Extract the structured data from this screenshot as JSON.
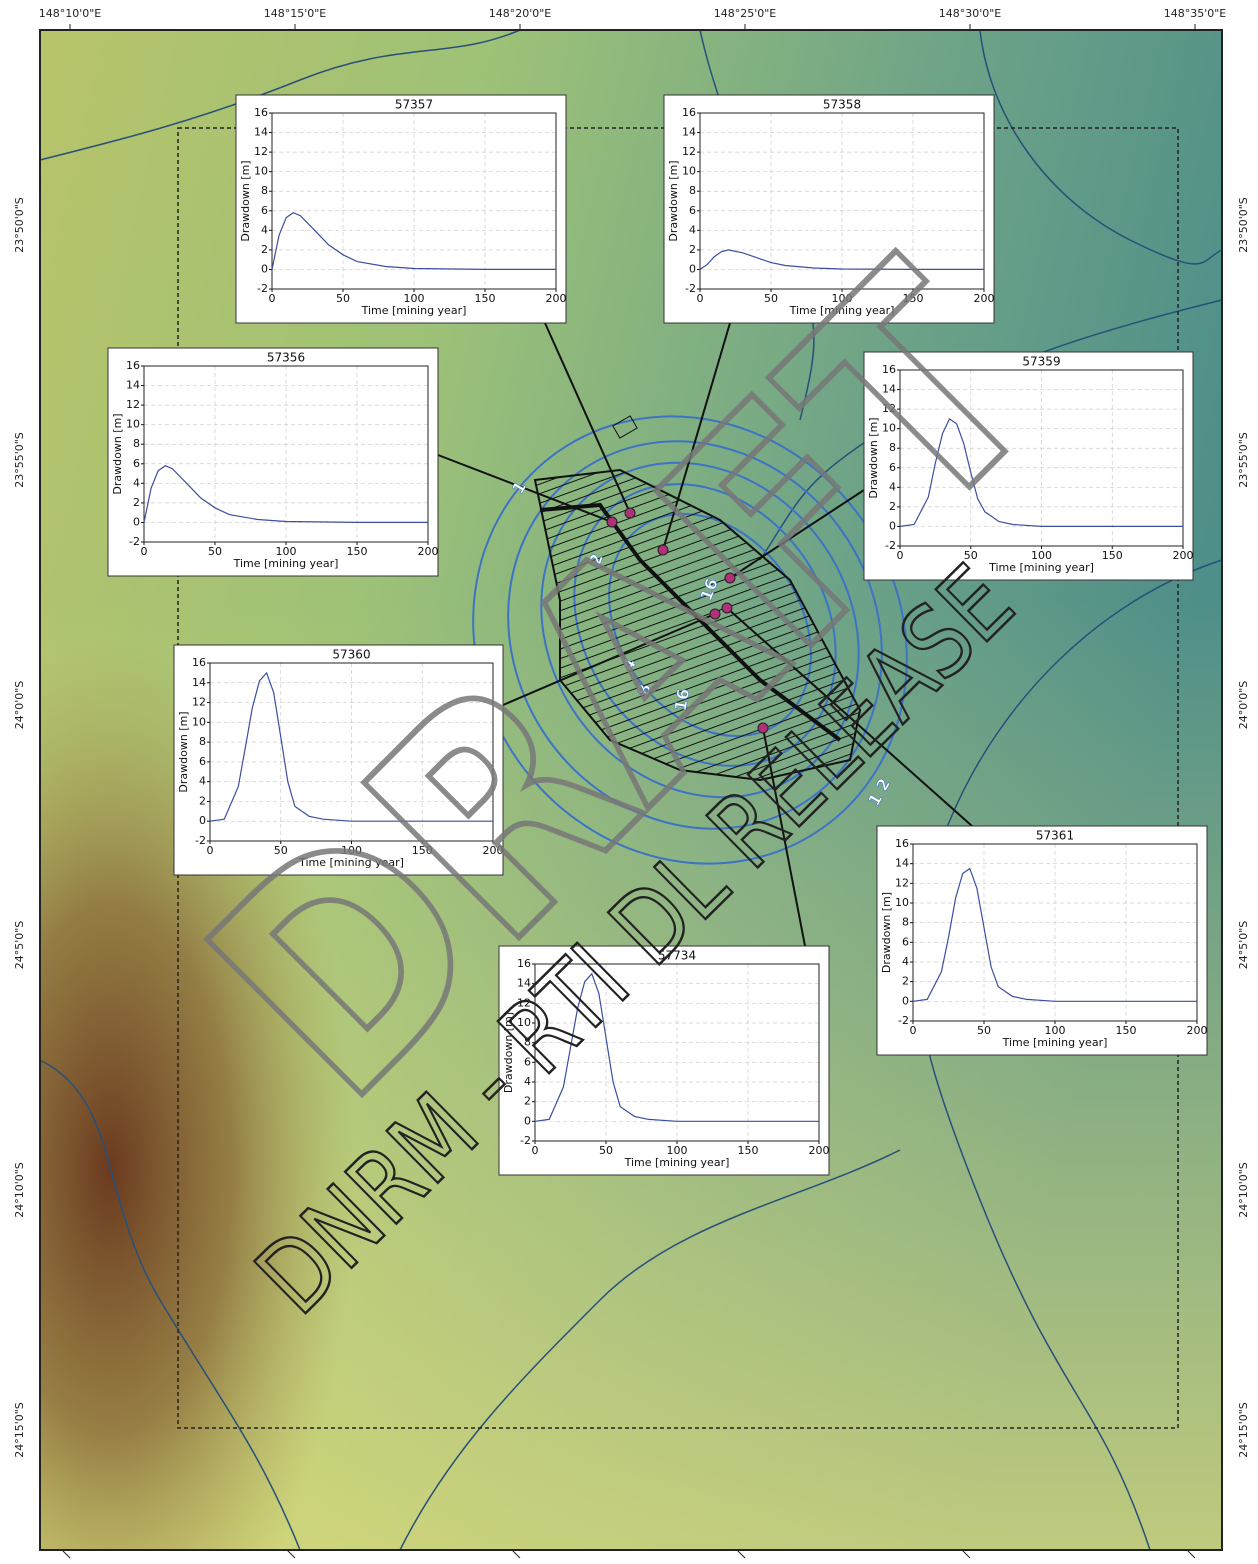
{
  "map": {
    "lon_labels": [
      "148°10'0\"E",
      "148°15'0\"E",
      "148°20'0\"E",
      "148°25'0\"E",
      "148°30'0\"E",
      "148°35'0\"E"
    ],
    "lat_labels": [
      "23°50'0\"S",
      "23°55'0\"S",
      "24°0'0\"S",
      "24°5'0\"S",
      "24°10'0\"S",
      "24°15'0\"S"
    ],
    "contour_labels": [
      "1",
      "2",
      "16",
      "4",
      "8",
      "16",
      "1",
      "2"
    ],
    "watermark": "DNRM - RTI DL RELEASE",
    "stamp": "DRAFT"
  },
  "chart_data": [
    {
      "type": "line",
      "title": "57357",
      "x_label": "Time [mining year]",
      "y_label": "Drawdown [m]",
      "color": "#3b4fa0",
      "x": [
        0,
        5,
        10,
        15,
        20,
        30,
        40,
        50,
        60,
        80,
        100,
        150,
        200
      ],
      "values": [
        0,
        3.5,
        5.3,
        5.8,
        5.5,
        4,
        2.5,
        1.5,
        0.8,
        0.3,
        0.1,
        0,
        0
      ],
      "xlim": [
        0,
        200
      ],
      "ylim": [
        -2,
        16
      ],
      "xticks": [
        0,
        50,
        100,
        150,
        200
      ],
      "yticks": [
        -2,
        0,
        2,
        4,
        6,
        8,
        10,
        12,
        14,
        16
      ],
      "grid": true
    },
    {
      "type": "line",
      "title": "57358",
      "x_label": "Time [mining year]",
      "y_label": "Drawdown [m]",
      "color": "#3b4fa0",
      "x": [
        0,
        5,
        10,
        15,
        20,
        30,
        40,
        50,
        60,
        80,
        100,
        150,
        200
      ],
      "values": [
        0,
        0.5,
        1.3,
        1.8,
        2,
        1.7,
        1.2,
        0.7,
        0.4,
        0.15,
        0.05,
        0,
        0
      ],
      "xlim": [
        0,
        200
      ],
      "ylim": [
        -2,
        16
      ],
      "xticks": [
        0,
        50,
        100,
        150,
        200
      ],
      "yticks": [
        -2,
        0,
        2,
        4,
        6,
        8,
        10,
        12,
        14,
        16
      ],
      "grid": true
    },
    {
      "type": "line",
      "title": "57356",
      "x_label": "Time [mining year]",
      "y_label": "Drawdown [m]",
      "color": "#3b4fa0",
      "x": [
        0,
        5,
        10,
        15,
        20,
        30,
        40,
        50,
        60,
        80,
        100,
        150,
        200
      ],
      "values": [
        0,
        3.5,
        5.3,
        5.8,
        5.5,
        4,
        2.5,
        1.5,
        0.8,
        0.3,
        0.1,
        0,
        0
      ],
      "xlim": [
        0,
        200
      ],
      "ylim": [
        -2,
        16
      ],
      "xticks": [
        0,
        50,
        100,
        150,
        200
      ],
      "yticks": [
        -2,
        0,
        2,
        4,
        6,
        8,
        10,
        12,
        14,
        16
      ],
      "grid": true
    },
    {
      "type": "line",
      "title": "57359",
      "x_label": "Time [mining year]",
      "y_label": "Drawdown [m]",
      "color": "#3b4fa0",
      "x": [
        0,
        10,
        20,
        25,
        30,
        35,
        40,
        45,
        50,
        55,
        60,
        70,
        80,
        100,
        150,
        200
      ],
      "values": [
        0,
        0.2,
        3,
        6.5,
        9.5,
        11,
        10.5,
        8.5,
        5.5,
        2.8,
        1.5,
        0.5,
        0.2,
        0,
        0,
        0
      ],
      "xlim": [
        0,
        200
      ],
      "ylim": [
        -2,
        16
      ],
      "xticks": [
        0,
        50,
        100,
        150,
        200
      ],
      "yticks": [
        -2,
        0,
        2,
        4,
        6,
        8,
        10,
        12,
        14,
        16
      ],
      "grid": true
    },
    {
      "type": "line",
      "title": "57360",
      "x_label": "Time [mining year]",
      "y_label": "Drawdown [m]",
      "color": "#3b4fa0",
      "x": [
        0,
        10,
        20,
        25,
        30,
        35,
        40,
        45,
        50,
        55,
        60,
        70,
        80,
        100,
        150,
        200
      ],
      "values": [
        0,
        0.2,
        3.5,
        7.5,
        11.5,
        14.2,
        15,
        13,
        8.5,
        4,
        1.5,
        0.5,
        0.2,
        0,
        0,
        0
      ],
      "xlim": [
        0,
        200
      ],
      "ylim": [
        -2,
        16
      ],
      "xticks": [
        0,
        50,
        100,
        150,
        200
      ],
      "yticks": [
        -2,
        0,
        2,
        4,
        6,
        8,
        10,
        12,
        14,
        16
      ],
      "grid": true
    },
    {
      "type": "line",
      "title": "57361",
      "x_label": "Time [mining year]",
      "y_label": "Drawdown [m]",
      "color": "#3b4fa0",
      "x": [
        0,
        10,
        20,
        25,
        30,
        35,
        40,
        45,
        50,
        55,
        60,
        70,
        80,
        100,
        150,
        200
      ],
      "values": [
        0,
        0.2,
        3,
        6.5,
        10.5,
        13,
        13.5,
        11.5,
        7.5,
        3.5,
        1.5,
        0.5,
        0.2,
        0,
        0,
        0
      ],
      "xlim": [
        0,
        200
      ],
      "ylim": [
        -2,
        16
      ],
      "xticks": [
        0,
        50,
        100,
        150,
        200
      ],
      "yticks": [
        -2,
        0,
        2,
        4,
        6,
        8,
        10,
        12,
        14,
        16
      ],
      "grid": true
    },
    {
      "type": "line",
      "title": "57734",
      "x_label": "Time [mining year]",
      "y_label": "Drawdown [m]",
      "color": "#3b4fa0",
      "x": [
        0,
        10,
        20,
        25,
        30,
        35,
        40,
        45,
        50,
        55,
        60,
        70,
        80,
        100,
        150,
        200
      ],
      "values": [
        0,
        0.2,
        3.5,
        7.5,
        11.5,
        14.2,
        15,
        13,
        8.5,
        4,
        1.5,
        0.5,
        0.2,
        0,
        0,
        0
      ],
      "xlim": [
        0,
        200
      ],
      "ylim": [
        -2,
        16
      ],
      "xticks": [
        0,
        50,
        100,
        150,
        200
      ],
      "yticks": [
        -2,
        0,
        2,
        4,
        6,
        8,
        10,
        12,
        14,
        16
      ],
      "grid": true
    }
  ]
}
